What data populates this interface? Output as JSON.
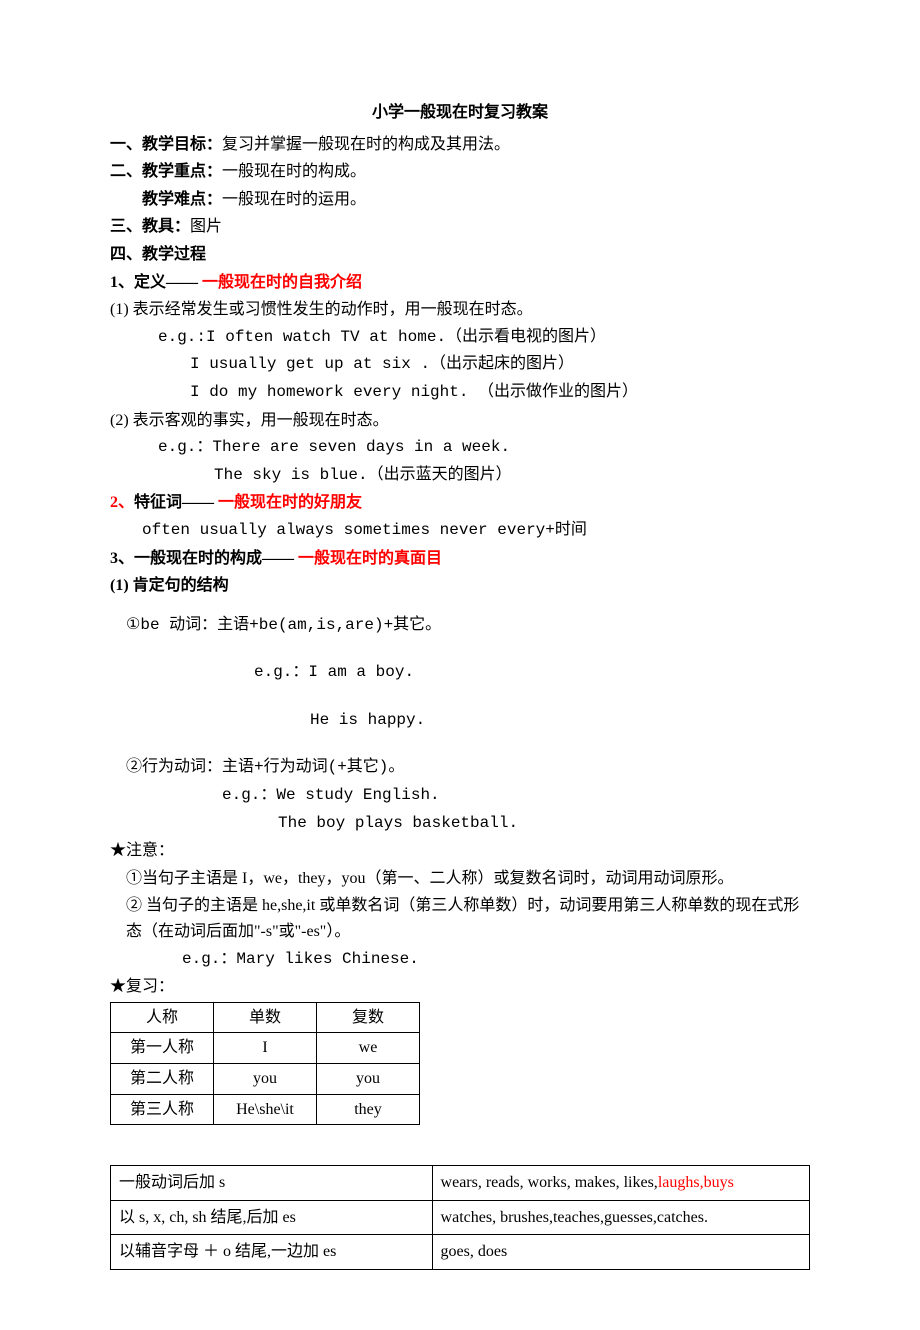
{
  "title": "小学一般现在时复习教案",
  "section1": {
    "label_num": "一、",
    "label": "教学目标：",
    "text": "复习并掌握一般现在时的构成及其用法。"
  },
  "section2": {
    "label_num": "二、",
    "label1": "教学重点：",
    "text1": "一般现在时的构成。",
    "label2": "教学难点：",
    "text2": "一般现在时的运用。"
  },
  "section3": {
    "label_num": "三、",
    "label": "教具：",
    "text": "图片"
  },
  "section4": {
    "label_num": "四、",
    "label": "教学过程"
  },
  "def": {
    "num": "1、",
    "label": "定义—— ",
    "red": "一般现在时的自我介绍",
    "item1": " (1) 表示经常发生或习惯性发生的动作时，用一般现在时态。",
    "eg1a": "e.g.:I often watch TV at home.（出示看电视的图片）",
    "eg1b": "I usually get up at six .（出示起床的图片）",
    "eg1c": "I do my homework every night. （出示做作业的图片）",
    "item2": " (2) 表示客观的事实，用一般现在时态。",
    "eg2a": "e.g.：There are seven days in a week.",
    "eg2b": "The sky is blue.（出示蓝天的图片）"
  },
  "feature": {
    "num": "2、",
    "label": "特征词—— ",
    "red": "一般现在时的好朋友",
    "words": "often  usually  always   sometimes   never   every+时间"
  },
  "form": {
    "num": "3、",
    "label": "一般现在时的构成—— ",
    "red": "一般现在时的真面目",
    "sub1": " (1) 肯定句的结构",
    "be_rule": "①be 动词：主语+be(am,is,are)+其它。",
    "be_eg_label": "e.g.：",
    "be_eg1": "I am a boy.",
    "be_eg2": "He is happy.",
    "act_rule": "②行为动词：主语+行为动词(+其它)。",
    "act_eg_label": "e.g.：",
    "act_eg1": "We study English.",
    "act_eg2": "The boy plays basketball."
  },
  "note": {
    "star": "★注意：",
    "n1": "①当句子主语是 I，we，they，you（第一、二人称）或复数名词时，动词用动词原形。",
    "n2": "② 当句子的主语是 he,she,it 或单数名词（第三人称单数）时，动词要用第三人称单数的现在式形态（在动词后面加\"-s\"或\"-es\"）。",
    "eg": "e.g.：Mary likes Chinese."
  },
  "review": {
    "star": "★复习：",
    "table": {
      "h1": "人称",
      "h2": "单数",
      "h3": "复数",
      "r1c1": "第一人称",
      "r1c2": "I",
      "r1c3": "we",
      "r2c1": "第二人称",
      "r2c2": "you",
      "r2c3": "you",
      "r3c1": "第三人称",
      "r3c2": "He\\she\\it",
      "r3c3": "they"
    }
  },
  "verb_table": {
    "r1c1": "一般动词后加 s",
    "r1c2a": "wears,  reads,  works,  makes, likes,",
    "r1c2_red": "laughs,buys",
    "r2c1": "以 s, x, ch, sh 结尾,后加 es",
    "r2c2": "watches, brushes,teaches,guesses,catches.",
    "r3c1": "以辅音字母 ＋ o 结尾,一边加 es",
    "r3c2": "goes, does"
  }
}
